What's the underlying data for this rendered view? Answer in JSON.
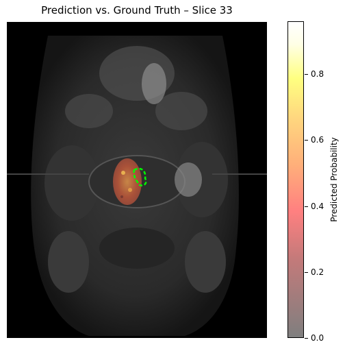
{
  "figure": {
    "title": "Prediction vs. Ground Truth – Slice 33"
  },
  "colorbar": {
    "label": "Predicted Probability",
    "ticks": [
      "0.0",
      "0.2",
      "0.4",
      "0.6",
      "0.8"
    ],
    "tick_values": [
      0.0,
      0.2,
      0.4,
      0.6,
      0.8
    ],
    "vmin": 0.0,
    "vmax": 0.96,
    "colors": {
      "low": "#7f7f7f",
      "mid": "#ff8080",
      "high": "#ffff80",
      "top": "#ffffff"
    }
  },
  "overlay": {
    "ground_truth_color": "#00ff00",
    "prediction_color": "#c0603a"
  }
}
